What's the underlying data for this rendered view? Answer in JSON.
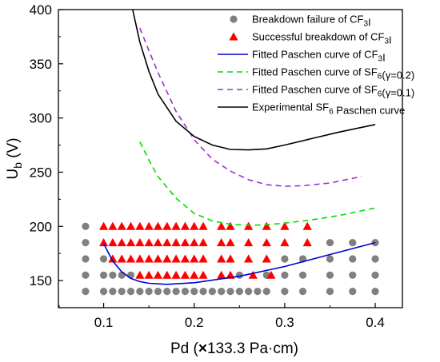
{
  "chart_data": {
    "type": "scatter",
    "xlabel": {
      "pre": "Pd (",
      "mult": "×",
      "post": "133.3 Pa·cm)"
    },
    "ylabel": {
      "main": "U",
      "sub": "b",
      "post": " (V)"
    },
    "xlim": [
      0.05,
      0.43
    ],
    "ylim": [
      125,
      400
    ],
    "xticks": [
      {
        "value": 0.1,
        "label": "0.1"
      },
      {
        "value": 0.2,
        "label": "0.2"
      },
      {
        "value": 0.3,
        "label": "0.3"
      },
      {
        "value": 0.4,
        "label": "0.4"
      }
    ],
    "yticks": [
      {
        "value": 150,
        "label": "150"
      },
      {
        "value": 200,
        "label": "200"
      },
      {
        "value": 250,
        "label": "250"
      },
      {
        "value": 300,
        "label": "300"
      },
      {
        "value": 350,
        "label": "350"
      },
      {
        "value": 400,
        "label": "400"
      }
    ],
    "legend_position": "top-right",
    "legend": [
      {
        "key": "failure",
        "parts": [
          {
            "t": "Breakdown failure of CF"
          },
          {
            "t": "3",
            "sub": true
          },
          {
            "t": "I"
          }
        ]
      },
      {
        "key": "success",
        "parts": [
          {
            "t": "Successful breakdown of CF"
          },
          {
            "t": "3",
            "sub": true
          },
          {
            "t": "I"
          }
        ]
      },
      {
        "key": "fit_cf3i",
        "parts": [
          {
            "t": "Fitted Paschen curve of CF"
          },
          {
            "t": "3",
            "sub": true
          },
          {
            "t": "I"
          }
        ]
      },
      {
        "key": "fit_sf6_02",
        "parts": [
          {
            "t": "Fitted Paschen curve of SF"
          },
          {
            "t": "6",
            "sub": true
          },
          {
            "t": "(γ=0.2)"
          }
        ]
      },
      {
        "key": "fit_sf6_01",
        "parts": [
          {
            "t": "Fitted Paschen curve of SF"
          },
          {
            "t": "6",
            "sub": true
          },
          {
            "t": "(γ=0.1)"
          }
        ]
      },
      {
        "key": "exp_sf6",
        "parts": [
          {
            "t": "Experimental SF"
          },
          {
            "t": "6",
            "sub": true
          },
          {
            "t": " Paschen curve"
          }
        ]
      }
    ],
    "series": [
      {
        "key": "failure",
        "kind": "scatter",
        "marker": "circle",
        "color": "#808080",
        "rows": [
          {
            "y": 140,
            "x": [
              0.08,
              0.1,
              0.11,
              0.12,
              0.13,
              0.14,
              0.15,
              0.16,
              0.17,
              0.18,
              0.19,
              0.2,
              0.21,
              0.22,
              0.23,
              0.24,
              0.25,
              0.26,
              0.27,
              0.28,
              0.3,
              0.32,
              0.35,
              0.375,
              0.4
            ]
          },
          {
            "y": 155,
            "x": [
              0.08,
              0.1,
              0.11,
              0.12,
              0.13,
              0.25,
              0.28,
              0.3,
              0.32,
              0.35,
              0.375,
              0.4
            ]
          },
          {
            "y": 170,
            "x": [
              0.08,
              0.1,
              0.3,
              0.32,
              0.35,
              0.375,
              0.4
            ]
          },
          {
            "y": 185,
            "x": [
              0.08,
              0.35,
              0.375,
              0.4
            ]
          },
          {
            "y": 200,
            "x": [
              0.08
            ]
          }
        ]
      },
      {
        "key": "success",
        "kind": "scatter",
        "marker": "triangle",
        "color": "#ff0000",
        "rows": [
          {
            "y": 200,
            "x": [
              0.1,
              0.11,
              0.12,
              0.13,
              0.14,
              0.15,
              0.16,
              0.17,
              0.18,
              0.19,
              0.2,
              0.21,
              0.23,
              0.24,
              0.26,
              0.28,
              0.3,
              0.325
            ]
          },
          {
            "y": 185,
            "x": [
              0.1,
              0.11,
              0.12,
              0.13,
              0.14,
              0.15,
              0.16,
              0.17,
              0.18,
              0.19,
              0.2,
              0.21,
              0.23,
              0.24,
              0.26,
              0.28,
              0.3,
              0.325
            ]
          },
          {
            "y": 170,
            "x": [
              0.11,
              0.12,
              0.13,
              0.14,
              0.15,
              0.16,
              0.17,
              0.18,
              0.19,
              0.2,
              0.21,
              0.23,
              0.24,
              0.26,
              0.28
            ]
          },
          {
            "y": 155,
            "x": [
              0.14,
              0.15,
              0.16,
              0.17,
              0.18,
              0.19,
              0.2,
              0.21,
              0.23,
              0.24,
              0.265,
              0.285
            ]
          }
        ]
      },
      {
        "key": "fit_cf3i",
        "kind": "line",
        "color": "#0000cd",
        "dash": "solid",
        "points": [
          [
            0.1,
            184
          ],
          [
            0.11,
            168
          ],
          [
            0.12,
            158
          ],
          [
            0.13,
            152
          ],
          [
            0.14,
            149
          ],
          [
            0.15,
            147.5
          ],
          [
            0.17,
            146.5
          ],
          [
            0.2,
            148
          ],
          [
            0.25,
            154
          ],
          [
            0.3,
            163
          ],
          [
            0.35,
            174
          ],
          [
            0.4,
            185
          ]
        ]
      },
      {
        "key": "fit_sf6_02",
        "kind": "line",
        "color": "#00dd00",
        "dash": "dashed",
        "points": [
          [
            0.14,
            278
          ],
          [
            0.15,
            261
          ],
          [
            0.16,
            246
          ],
          [
            0.18,
            226
          ],
          [
            0.2,
            212
          ],
          [
            0.22,
            205
          ],
          [
            0.24,
            202
          ],
          [
            0.26,
            201
          ],
          [
            0.28,
            201.5
          ],
          [
            0.3,
            203
          ],
          [
            0.33,
            206
          ],
          [
            0.36,
            210
          ],
          [
            0.4,
            217
          ]
        ]
      },
      {
        "key": "fit_sf6_01",
        "kind": "line",
        "color": "#9a32cd",
        "dash": "dashed",
        "points": [
          [
            0.14,
            383
          ],
          [
            0.15,
            362
          ],
          [
            0.16,
            342
          ],
          [
            0.18,
            306
          ],
          [
            0.2,
            280
          ],
          [
            0.22,
            262
          ],
          [
            0.24,
            251
          ],
          [
            0.26,
            243
          ],
          [
            0.28,
            238.5
          ],
          [
            0.3,
            237
          ],
          [
            0.32,
            237.5
          ],
          [
            0.35,
            240
          ],
          [
            0.385,
            246
          ]
        ]
      },
      {
        "key": "exp_sf6",
        "kind": "line",
        "color": "#000000",
        "dash": "solid",
        "points": [
          [
            0.132,
            400
          ],
          [
            0.14,
            370
          ],
          [
            0.15,
            343
          ],
          [
            0.16,
            322
          ],
          [
            0.18,
            297
          ],
          [
            0.2,
            283
          ],
          [
            0.22,
            275
          ],
          [
            0.24,
            271
          ],
          [
            0.26,
            270.5
          ],
          [
            0.28,
            271.5
          ],
          [
            0.3,
            275
          ],
          [
            0.33,
            281
          ],
          [
            0.36,
            287
          ],
          [
            0.4,
            294
          ]
        ]
      }
    ]
  }
}
